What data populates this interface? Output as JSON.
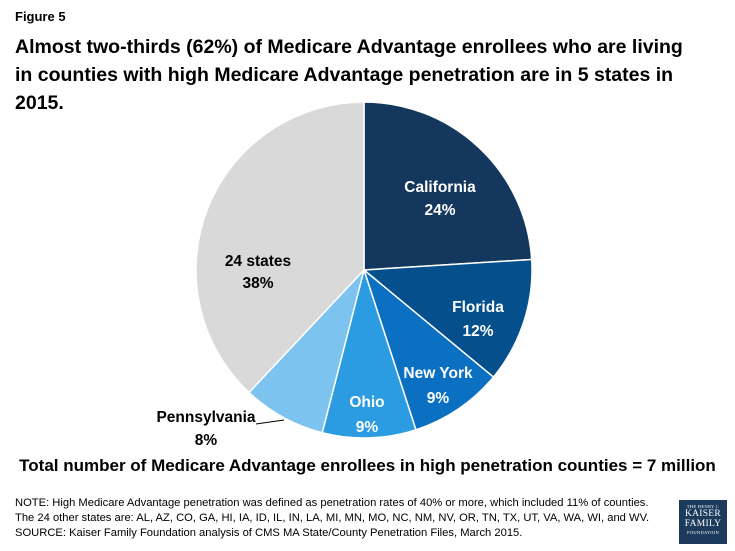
{
  "figure_label": "Figure 5",
  "title": "Almost two-thirds (62%) of Medicare Advantage enrollees who are living in counties with high Medicare Advantage penetration are in 5 states in 2015.",
  "chart_data": {
    "type": "pie",
    "title": "Almost two-thirds (62%) of Medicare Advantage enrollees who are living in counties with high Medicare Advantage penetration are in 5 states in 2015.",
    "start": "12 o'clock, clockwise",
    "slices": [
      {
        "name": "California",
        "value": 24,
        "label": "24%",
        "color": "#14375e",
        "text_color": "#ffffff"
      },
      {
        "name": "Florida",
        "value": 12,
        "label": "12%",
        "color": "#054f8d",
        "text_color": "#ffffff"
      },
      {
        "name": "New York",
        "value": 9,
        "label": "9%",
        "color": "#0b6fc2",
        "text_color": "#ffffff"
      },
      {
        "name": "Ohio",
        "value": 9,
        "label": "9%",
        "color": "#2b9ce1",
        "text_color": "#ffffff"
      },
      {
        "name": "Pennsylvania",
        "value": 8,
        "label": "8%",
        "color": "#7cc4ef",
        "text_color": "#000000"
      },
      {
        "name": "24 states",
        "value": 38,
        "label": "38%",
        "color": "#d9d9d9",
        "text_color": "#000000"
      }
    ]
  },
  "total_note": "Total number of Medicare Advantage enrollees in high penetration counties = 7 million",
  "notes": [
    "NOTE: High Medicare Advantage penetration was defined as penetration rates of 40% or more, which included 11% of counties.",
    "The 24 other states are: AL, AZ, CO, GA, HI, IA, ID, IL, IN, LA, MI, MN, MO, NC, NM, NV, OR, TN, TX, UT, VA, WA, WI, and WV.",
    "SOURCE: Kaiser Family Foundation analysis of CMS MA State/County Penetration Files, March 2015."
  ],
  "logo": {
    "line1": "THE HENRY J.",
    "line2": "KAISER",
    "line3": "FAMILY",
    "line4": "FOUNDATION",
    "color": "#1b3a5c"
  }
}
